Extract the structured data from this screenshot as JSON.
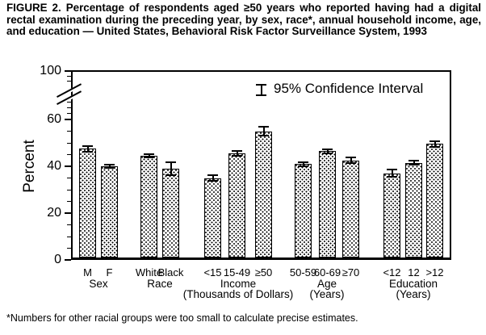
{
  "figure_title": "FIGURE 2. Percentage of respondents aged ≥50 years who reported having had a digital rectal examination during the preceding year, by sex, race*, annual household income, age, and education — United States, Behavioral Risk Factor Surveillance System, 1993",
  "footnote": "*Numbers for other racial groups were too small to calculate precise estimates.",
  "legend": {
    "label": "95% Confidence Interval"
  },
  "chart_data": {
    "type": "bar",
    "title": "",
    "xlabel": "",
    "ylabel": "Percent",
    "ylim": [
      0,
      100
    ],
    "y_major_ticks": [
      0,
      20,
      40,
      60,
      100
    ],
    "y_minor_tick_interval": 5,
    "axis_break_between": [
      70,
      100
    ],
    "grid": false,
    "legend_position": "top-right-inside",
    "error_bars": "95% confidence interval",
    "groups": [
      {
        "label": "Sex",
        "sublabel": "",
        "bars": [
          {
            "category": "M",
            "value": 47.5,
            "ci": 1.5
          },
          {
            "category": "F",
            "value": 40,
            "ci": 1.2
          }
        ]
      },
      {
        "label": "Race",
        "sublabel": "",
        "bars": [
          {
            "category": "White",
            "value": 44.5,
            "ci": 1.0
          },
          {
            "category": "Black",
            "value": 39,
            "ci": 3.0
          }
        ]
      },
      {
        "label": "Income",
        "sublabel": "(Thousands of Dollars)",
        "bars": [
          {
            "category": "<15",
            "value": 35,
            "ci": 1.6
          },
          {
            "category": "15-49",
            "value": 45.5,
            "ci": 1.5
          },
          {
            "category": "≥50",
            "value": 55,
            "ci": 2.2
          }
        ]
      },
      {
        "label": "Age",
        "sublabel": "(Years)",
        "bars": [
          {
            "category": "50-59",
            "value": 41,
            "ci": 1.2
          },
          {
            "category": "60-69",
            "value": 46.5,
            "ci": 1.2
          },
          {
            "category": "≥70",
            "value": 42.5,
            "ci": 1.5
          }
        ]
      },
      {
        "label": "Education",
        "sublabel": "(Years)",
        "bars": [
          {
            "category": "<12",
            "value": 37,
            "ci": 1.9
          },
          {
            "category": "12",
            "value": 41.5,
            "ci": 1.2
          },
          {
            "category": ">12",
            "value": 49.5,
            "ci": 1.5
          }
        ]
      }
    ]
  },
  "colors": {
    "ink": "#000000",
    "paper": "#ffffff"
  }
}
